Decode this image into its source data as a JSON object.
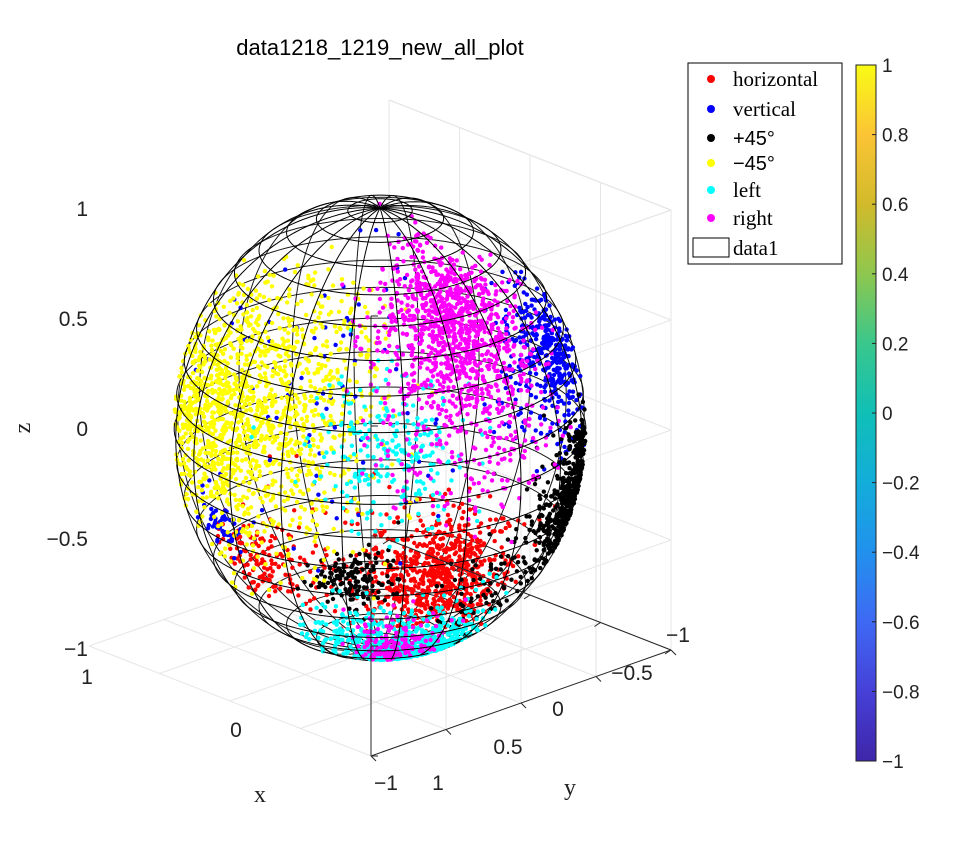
{
  "chart_data": {
    "type": "scatter",
    "title": "data1218_1219_new_all_plot",
    "xlabel": "x",
    "ylabel": "y",
    "zlabel": "z",
    "x_ticks": [
      "1",
      "0",
      "−1"
    ],
    "y_ticks": [
      "1",
      "0.5",
      "0",
      "−0.5",
      "−1"
    ],
    "z_ticks": [
      "1",
      "0.5",
      "0",
      "−0.5",
      "−1"
    ],
    "xlim": [
      -1,
      1
    ],
    "ylim": [
      -1,
      1
    ],
    "zlim": [
      -1,
      1
    ],
    "grid": true,
    "legend_position": "top-right, outside axes",
    "series": [
      {
        "name": "horizontal",
        "color": "#ff0000",
        "marker": "dot",
        "clusters": [
          {
            "az": -20,
            "el": -22,
            "spread": 12,
            "count": 700
          },
          {
            "az": 35,
            "el": -20,
            "spread": 8,
            "count": 120
          },
          {
            "az": 10,
            "el": -15,
            "spread": 15,
            "count": 60
          }
        ]
      },
      {
        "name": "vertical",
        "color": "#0000ff",
        "marker": "dot",
        "clusters": [
          {
            "az": -68,
            "el": 25,
            "spread": 12,
            "count": 400
          },
          {
            "az": 50,
            "el": -14,
            "spread": 5,
            "count": 50
          },
          {
            "az": 15,
            "el": 25,
            "spread": 25,
            "count": 90
          }
        ]
      },
      {
        "name": "+45°",
        "color": "#000000",
        "marker": "dot",
        "clusters": [
          {
            "az": -76,
            "el": -12,
            "spread": 12,
            "count": 650
          },
          {
            "az": 5,
            "el": -22,
            "spread": 6,
            "count": 150
          },
          {
            "az": -40,
            "el": -30,
            "spread": 12,
            "count": 80
          }
        ]
      },
      {
        "name": "−45°",
        "color": "#ffff00",
        "marker": "dot",
        "clusters": [
          {
            "az": 45,
            "el": 15,
            "spread": 20,
            "count": 1300
          },
          {
            "az": 20,
            "el": 35,
            "spread": 15,
            "count": 150
          }
        ]
      },
      {
        "name": "left",
        "color": "#00ffff",
        "marker": "dot",
        "clusters": [
          {
            "az": -20,
            "el": -58,
            "spread": 14,
            "count": 900
          },
          {
            "az": -5,
            "el": 12,
            "spread": 12,
            "count": 250
          },
          {
            "az": 10,
            "el": -45,
            "spread": 10,
            "count": 150
          }
        ]
      },
      {
        "name": "right",
        "color": "#ff00ff",
        "marker": "dot",
        "clusters": [
          {
            "az": -32,
            "el": 42,
            "spread": 15,
            "count": 1000
          },
          {
            "az": -10,
            "el": -50,
            "spread": 10,
            "count": 150
          },
          {
            "az": -30,
            "el": 15,
            "spread": 15,
            "count": 200
          }
        ]
      }
    ],
    "surface": {
      "name": "data1",
      "type": "wireframe sphere",
      "radius": 1,
      "n_lat": 20,
      "n_lon": 20,
      "face": "none",
      "edge": "#000000"
    }
  },
  "colorbar": {
    "ticks": [
      "1",
      "0.8",
      "0.6",
      "0.4",
      "0.2",
      "0",
      "−0.2",
      "−0.4",
      "−0.6",
      "−0.8",
      "−1"
    ],
    "tick_values": [
      1,
      0.8,
      0.6,
      0.4,
      0.2,
      0,
      -0.2,
      -0.4,
      -0.6,
      -0.8,
      -1
    ],
    "range": [
      -1,
      1
    ],
    "colormap": "parula",
    "position": "right"
  }
}
